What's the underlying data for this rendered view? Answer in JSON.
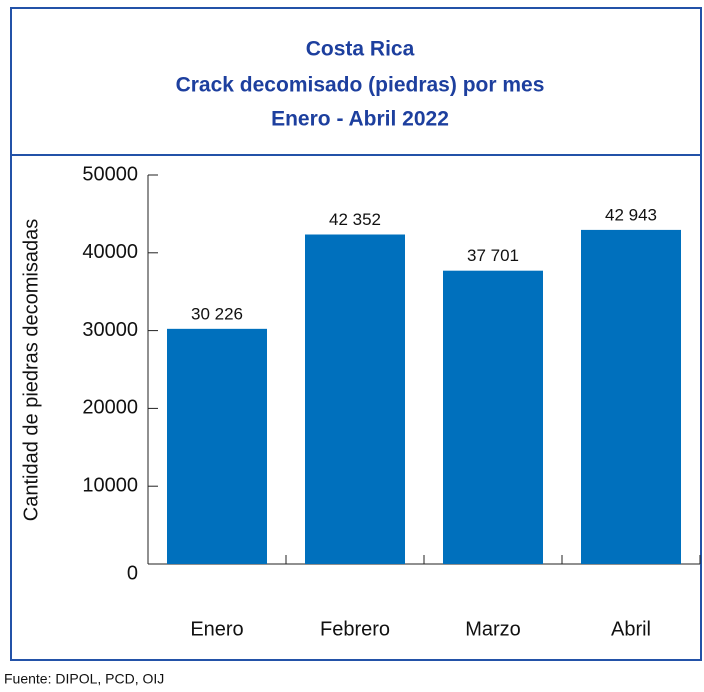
{
  "chart_data": {
    "type": "bar",
    "title": [
      "Costa Rica",
      "Crack decomisado (piedras) por mes",
      "Enero - Abril 2022"
    ],
    "ylabel": "Cantidad de piedras decomisadas",
    "categories": [
      "Enero",
      "Febrero",
      "Marzo",
      "Abril"
    ],
    "values": [
      30226,
      42352,
      37701,
      42943
    ],
    "value_labels": [
      "30 226",
      "42 352",
      "37 701",
      "42 943"
    ],
    "color": "#0070bd",
    "ylim": [
      0,
      50000
    ],
    "yticks": [
      0,
      10000,
      20000,
      30000,
      40000,
      50000
    ],
    "source": "Fuente: DIPOL, PCD, OIJ"
  }
}
